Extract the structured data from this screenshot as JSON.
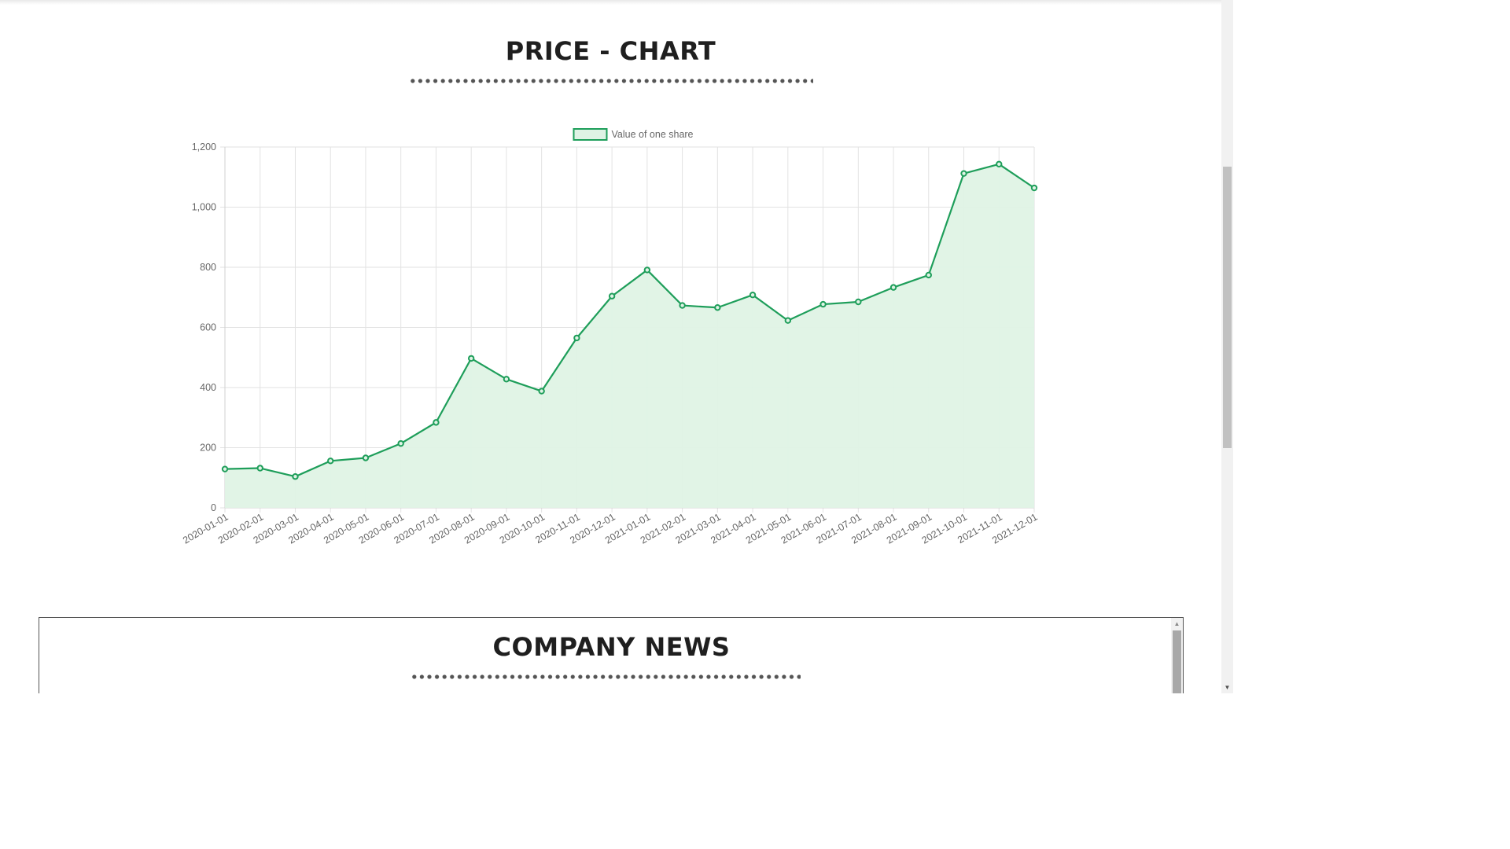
{
  "price_section": {
    "title": "PRICE - CHART"
  },
  "news_section": {
    "title": "COMPANY NEWS"
  },
  "colors": {
    "line": "#1e9e5a",
    "fill": "#dff3e5",
    "grid": "#e2e2e2",
    "text": "#666666",
    "title": "#1f1f1f"
  },
  "chart_data": {
    "type": "area",
    "title": "",
    "xlabel": "",
    "ylabel": "",
    "legend_position": "top",
    "grid": true,
    "ylim": [
      0,
      1200
    ],
    "yticks": [
      0,
      200,
      400,
      600,
      800,
      1000,
      1200
    ],
    "ytick_labels": [
      "0",
      "200",
      "400",
      "600",
      "800",
      "1,000",
      "1,200"
    ],
    "categories": [
      "2020-01-01",
      "2020-02-01",
      "2020-03-01",
      "2020-04-01",
      "2020-05-01",
      "2020-06-01",
      "2020-07-01",
      "2020-08-01",
      "2020-09-01",
      "2020-10-01",
      "2020-11-01",
      "2020-12-01",
      "2021-01-01",
      "2021-02-01",
      "2021-03-01",
      "2021-04-01",
      "2021-05-01",
      "2021-06-01",
      "2021-07-01",
      "2021-08-01",
      "2021-09-01",
      "2021-10-01",
      "2021-11-01",
      "2021-12-01"
    ],
    "series": [
      {
        "name": "Value of one share",
        "values": [
          129,
          132,
          104,
          156,
          166,
          214,
          284,
          497,
          428,
          388,
          565,
          704,
          791,
          673,
          666,
          708,
          623,
          677,
          685,
          733,
          774,
          1112,
          1143,
          1064
        ]
      }
    ]
  }
}
